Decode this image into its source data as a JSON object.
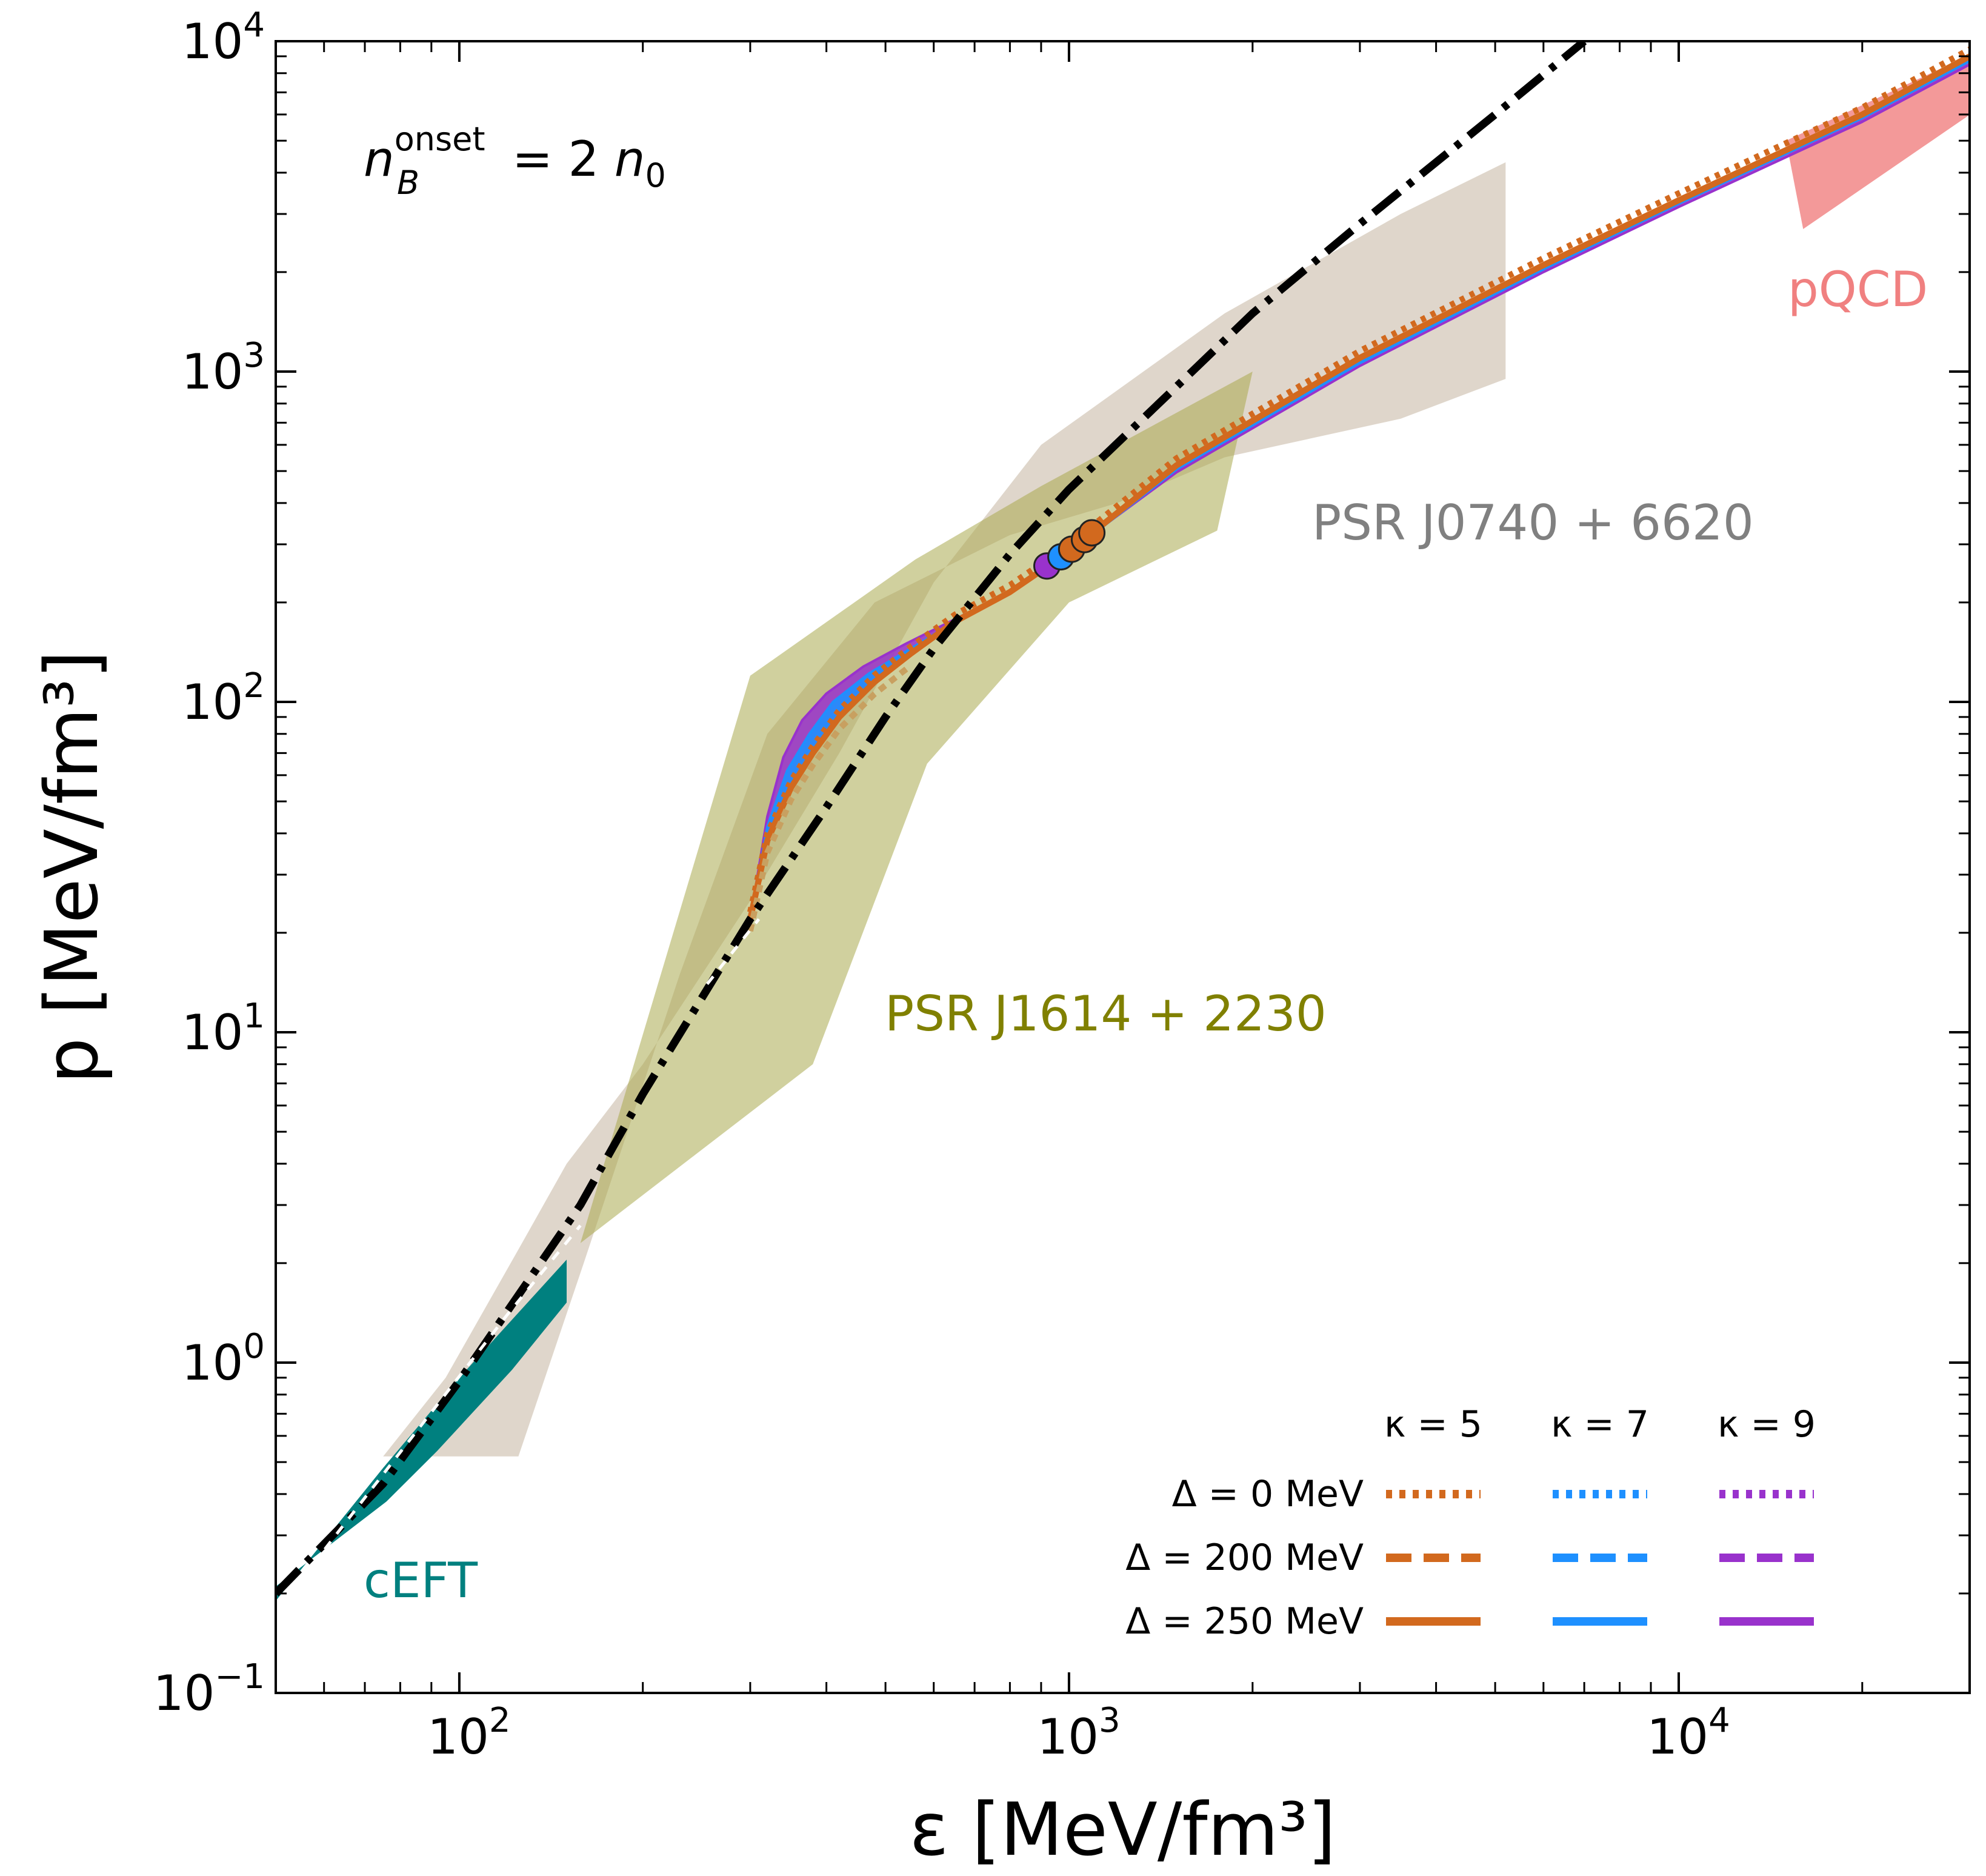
{
  "chart_data": {
    "type": "line",
    "xlabel": "ε [MeV/fm³]",
    "ylabel": "p [MeV/fm³]",
    "xscale": "log",
    "yscale": "log",
    "xlim": [
      50,
      30000
    ],
    "ylim": [
      0.1,
      10000
    ],
    "x_tick_labels": [
      {
        "value": 100,
        "base": "10",
        "exp": "2"
      },
      {
        "value": 1000,
        "base": "10",
        "exp": "3"
      },
      {
        "value": 10000,
        "base": "10",
        "exp": "4"
      }
    ],
    "y_tick_labels": [
      {
        "value": 0.1,
        "base": "10",
        "exp": "−1"
      },
      {
        "value": 1,
        "base": "10",
        "exp": "0"
      },
      {
        "value": 10,
        "base": "10",
        "exp": "1"
      },
      {
        "value": 100,
        "base": "10",
        "exp": "2"
      },
      {
        "value": 1000,
        "base": "10",
        "exp": "3"
      },
      {
        "value": 10000,
        "base": "10",
        "exp": "4"
      }
    ],
    "grid": false,
    "onset_label": {
      "main": "n",
      "sub": "B",
      "sup": "onset",
      "rest": "=  2 ",
      "n0_main": "n",
      "n0_sub": "0"
    },
    "regions": [
      {
        "label": "PSR J0740 + 6620",
        "color": "#c9bba9",
        "opacity": 0.6,
        "polygon": [
          [
            75,
            0.52
          ],
          [
            125,
            0.52
          ],
          [
            160,
            2.0
          ],
          [
            230,
            15
          ],
          [
            320,
            80
          ],
          [
            480,
            200
          ],
          [
            800,
            320
          ],
          [
            1200,
            400
          ],
          [
            1800,
            550
          ],
          [
            3500,
            720
          ],
          [
            5200,
            950
          ],
          [
            5200,
            4300
          ],
          [
            3500,
            3000
          ],
          [
            1800,
            1500
          ],
          [
            900,
            600
          ],
          [
            600,
            230
          ],
          [
            420,
            70
          ],
          [
            300,
            25
          ],
          [
            200,
            8
          ],
          [
            150,
            4
          ],
          [
            125,
            2.2
          ],
          [
            95,
            0.9
          ]
        ]
      },
      {
        "label": "PSR J1614 + 2230",
        "color": "#a9aa4e",
        "opacity": 0.55,
        "polygon": [
          [
            158,
            2.3
          ],
          [
            380,
            8
          ],
          [
            585,
            65
          ],
          [
            1000,
            200
          ],
          [
            1750,
            330
          ],
          [
            2000,
            1000
          ],
          [
            900,
            450
          ],
          [
            560,
            270
          ],
          [
            300,
            120
          ]
        ]
      },
      {
        "label": "pQCD",
        "color": "#f08080",
        "opacity": 0.8,
        "polygon": [
          [
            15000,
            5000
          ],
          [
            32000,
            9600
          ],
          [
            32000,
            6500
          ],
          [
            16000,
            2700
          ]
        ]
      },
      {
        "label": "cEFT",
        "color": "#00807f",
        "opacity": 1.0,
        "polygon": [
          [
            50,
            0.19
          ],
          [
            75,
            0.48
          ],
          [
            100,
            0.9
          ],
          [
            150,
            2.05
          ],
          [
            150,
            1.52
          ],
          [
            122,
            0.95
          ],
          [
            92,
            0.54
          ],
          [
            76,
            0.38
          ],
          [
            50,
            0.21
          ]
        ]
      }
    ],
    "nuclear_eos": {
      "color": "#000000",
      "style": "dashdot",
      "x": [
        50,
        75,
        100,
        125,
        158,
        200,
        300,
        400,
        500,
        600,
        800,
        1000,
        1500,
        2000,
        3000,
        5000,
        7000
      ],
      "y": [
        0.2,
        0.43,
        0.88,
        1.6,
        3.0,
        6.5,
        22,
        48,
        90,
        145,
        280,
        440,
        900,
        1500,
        2800,
        6000,
        10000
      ]
    },
    "inner_dash": {
      "color": "#ffffff",
      "x": [
        55,
        120,
        158
      ],
      "y": [
        0.22,
        1.4,
        2.6
      ],
      "x2": [
        255,
        310
      ],
      "y2": [
        14,
        22
      ]
    },
    "series": [
      {
        "kappa": 5,
        "color": "#d2691e",
        "x": [
          300,
          320,
          350,
          380,
          420,
          480,
          550,
          650,
          800,
          1000,
          1500,
          3000,
          6000,
          10000,
          20000,
          30000
        ],
        "y": [
          22,
          38,
          55,
          70,
          90,
          115,
          140,
          175,
          215,
          285,
          520,
          1100,
          2100,
          3300,
          6000,
          9000
        ]
      },
      {
        "kappa": 7,
        "color": "#1e90ff",
        "x": [
          300,
          320,
          345,
          375,
          410,
          470,
          550,
          650,
          800,
          970,
          1500,
          3000,
          6000,
          10000,
          20000,
          30000
        ],
        "y": [
          22,
          42,
          62,
          80,
          100,
          122,
          145,
          175,
          215,
          270,
          505,
          1060,
          2040,
          3220,
          5850,
          8700
        ]
      },
      {
        "kappa": 9,
        "color": "#9932cc",
        "x": [
          300,
          320,
          340,
          365,
          400,
          460,
          540,
          650,
          800,
          920,
          1500,
          3000,
          6000,
          10000,
          20000,
          30000
        ],
        "y": [
          22,
          45,
          68,
          88,
          106,
          128,
          150,
          178,
          215,
          255,
          495,
          1040,
          2000,
          3150,
          5700,
          8500
        ]
      }
    ],
    "endpoints": [
      {
        "color": "#9932cc",
        "x": 920,
        "y": 258
      },
      {
        "color": "#1e90ff",
        "x": 970,
        "y": 275
      },
      {
        "color": "#d2691e",
        "x": 1010,
        "y": 290
      },
      {
        "color": "#d2691e",
        "x": 1060,
        "y": 310
      },
      {
        "color": "#d2691e",
        "x": 1090,
        "y": 325
      }
    ],
    "legend": {
      "placement": "lower-right",
      "columns": [
        {
          "label": "κ = 5",
          "color": "#d2691e"
        },
        {
          "label": "κ = 7",
          "color": "#1e90ff"
        },
        {
          "label": "κ = 9",
          "color": "#9932cc"
        }
      ],
      "rows": [
        {
          "label": "Δ = 0 MeV",
          "style": "dotted"
        },
        {
          "label": "Δ = 200 MeV",
          "style": "dashed"
        },
        {
          "label": "Δ = 250 MeV",
          "style": "solid"
        }
      ]
    }
  }
}
